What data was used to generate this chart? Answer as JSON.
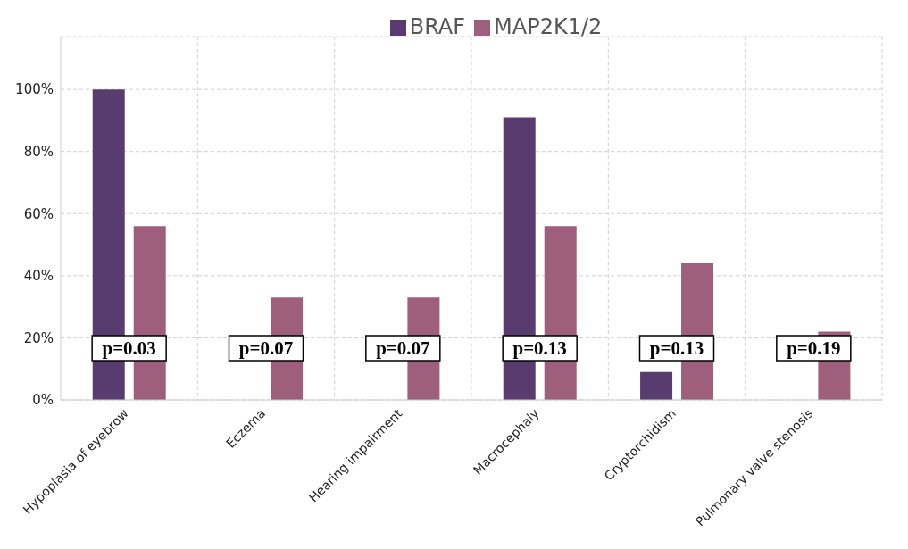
{
  "chart_data": {
    "type": "bar",
    "categories": [
      "Hypoplasia of eyebrow",
      "Eczema",
      "Hearing impairment",
      "Macrocephaly",
      "Cryptorchidism",
      "Pulmonary valve stenosis"
    ],
    "series": [
      {
        "name": "BRAF",
        "color": "#583c6f",
        "values": [
          100,
          0,
          0,
          91,
          9,
          0
        ]
      },
      {
        "name": "MAP2K1/2",
        "color": "#9e5f7c",
        "values": [
          56,
          33,
          33,
          56,
          44,
          22
        ]
      }
    ],
    "ylim": [
      0,
      117
    ],
    "yticks": [
      {
        "value": 0,
        "label": "0%"
      },
      {
        "value": 20,
        "label": "20%"
      },
      {
        "value": 40,
        "label": "40%"
      },
      {
        "value": 60,
        "label": "60%"
      },
      {
        "value": 80,
        "label": "80%"
      },
      {
        "value": 100,
        "label": "100%"
      }
    ],
    "annotations": [
      "p=0.03",
      "p=0.07",
      "p=0.07",
      "p=0.13",
      "p=0.13",
      "p=0.19"
    ],
    "grid": true,
    "legend": "top"
  }
}
